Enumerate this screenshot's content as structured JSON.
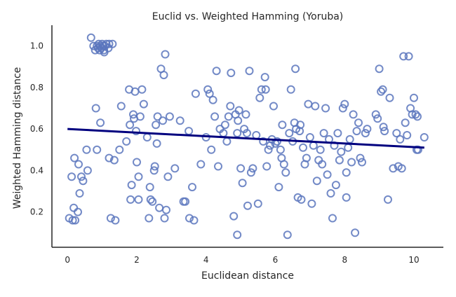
{
  "chart_data": {
    "type": "scatter",
    "title": "Euclid vs. Weighted Hamming (Yoruba)",
    "xlabel": "Euclidean distance",
    "ylabel": "Weighted Hamming distance",
    "xlim": [
      -0.45,
      10.85
    ],
    "ylim": [
      0.03,
      1.1
    ],
    "x_ticks": [
      "0",
      "2",
      "4",
      "6",
      "8",
      "10"
    ],
    "y_ticks": [
      "0.2",
      "0.4",
      "0.6",
      "0.8",
      "1.0"
    ],
    "grid": false,
    "colors": {
      "points": "#5b76bd",
      "trend": "#00007f",
      "axis": "#262626"
    },
    "series": [
      {
        "kind": "points",
        "points": [
          [
            0.68,
            1.04
          ],
          [
            0.75,
            1.0
          ],
          [
            0.8,
            0.98
          ],
          [
            0.85,
            1.0
          ],
          [
            0.88,
            0.99
          ],
          [
            0.9,
            1.01
          ],
          [
            0.93,
            0.98
          ],
          [
            0.95,
            1.0
          ],
          [
            0.98,
            0.99
          ],
          [
            1.0,
            1.01
          ],
          [
            1.03,
            1.0
          ],
          [
            1.05,
            0.98
          ],
          [
            1.08,
            1.0
          ],
          [
            1.12,
            1.01
          ],
          [
            1.18,
            0.99
          ],
          [
            1.2,
            1.01
          ],
          [
            1.3,
            1.01
          ],
          [
            1.06,
            0.97
          ],
          [
            0.05,
            0.17
          ],
          [
            0.12,
            0.37
          ],
          [
            0.15,
            0.16
          ],
          [
            0.18,
            0.22
          ],
          [
            0.2,
            0.46
          ],
          [
            0.22,
            0.16
          ],
          [
            0.3,
            0.2
          ],
          [
            0.32,
            0.43
          ],
          [
            0.35,
            0.29
          ],
          [
            0.4,
            0.37
          ],
          [
            0.45,
            0.35
          ],
          [
            0.55,
            0.5
          ],
          [
            0.58,
            0.4
          ],
          [
            0.82,
            0.7
          ],
          [
            0.85,
            0.5
          ],
          [
            0.95,
            0.63
          ],
          [
            1.2,
            0.46
          ],
          [
            1.25,
            0.17
          ],
          [
            1.35,
            0.45
          ],
          [
            1.38,
            0.16
          ],
          [
            1.5,
            0.5
          ],
          [
            1.55,
            0.71
          ],
          [
            1.7,
            0.54
          ],
          [
            1.78,
            0.79
          ],
          [
            1.8,
            0.62
          ],
          [
            1.82,
            0.26
          ],
          [
            1.85,
            0.33
          ],
          [
            1.9,
            0.67
          ],
          [
            1.92,
            0.65
          ],
          [
            1.95,
            0.78
          ],
          [
            1.98,
            0.59
          ],
          [
            2.0,
            0.44
          ],
          [
            2.05,
            0.37
          ],
          [
            2.1,
            0.66
          ],
          [
            2.15,
            0.79
          ],
          [
            2.2,
            0.72
          ],
          [
            2.3,
            0.56
          ],
          [
            2.35,
            0.17
          ],
          [
            2.38,
            0.32
          ],
          [
            2.4,
            0.26
          ],
          [
            2.45,
            0.25
          ],
          [
            2.5,
            0.4
          ],
          [
            2.52,
            0.42
          ],
          [
            2.55,
            0.62
          ],
          [
            2.58,
            0.53
          ],
          [
            2.6,
            0.66
          ],
          [
            2.65,
            0.22
          ],
          [
            2.7,
            0.89
          ],
          [
            2.75,
            0.64
          ],
          [
            2.78,
            0.86
          ],
          [
            2.8,
            0.17
          ],
          [
            2.82,
            0.96
          ],
          [
            2.85,
            0.21
          ],
          [
            2.9,
            0.37
          ],
          [
            2.95,
            0.66
          ],
          [
            3.1,
            0.41
          ],
          [
            3.25,
            0.64
          ],
          [
            3.35,
            0.25
          ],
          [
            3.4,
            0.25
          ],
          [
            3.5,
            0.59
          ],
          [
            3.52,
            0.17
          ],
          [
            3.6,
            0.32
          ],
          [
            3.65,
            0.16
          ],
          [
            3.7,
            0.77
          ],
          [
            3.85,
            0.43
          ],
          [
            4.0,
            0.56
          ],
          [
            4.05,
            0.79
          ],
          [
            4.1,
            0.77
          ],
          [
            4.15,
            0.5
          ],
          [
            4.2,
            0.74
          ],
          [
            4.25,
            0.66
          ],
          [
            4.3,
            0.88
          ],
          [
            4.35,
            0.42
          ],
          [
            4.4,
            0.6
          ],
          [
            4.5,
            0.58
          ],
          [
            4.55,
            0.62
          ],
          [
            4.6,
            0.54
          ],
          [
            4.65,
            0.66
          ],
          [
            4.7,
            0.71
          ],
          [
            4.72,
            0.87
          ],
          [
            4.8,
            0.18
          ],
          [
            4.85,
            0.67
          ],
          [
            4.9,
            0.09
          ],
          [
            4.92,
            0.64
          ],
          [
            4.95,
            0.69
          ],
          [
            5.0,
            0.41
          ],
          [
            5.05,
            0.34
          ],
          [
            5.1,
            0.6
          ],
          [
            5.15,
            0.67
          ],
          [
            5.18,
            0.58
          ],
          [
            5.2,
            0.23
          ],
          [
            5.25,
            0.88
          ],
          [
            5.3,
            0.39
          ],
          [
            5.35,
            0.41
          ],
          [
            5.45,
            0.57
          ],
          [
            5.5,
            0.24
          ],
          [
            5.55,
            0.75
          ],
          [
            5.6,
            0.79
          ],
          [
            5.65,
            0.54
          ],
          [
            5.7,
            0.85
          ],
          [
            5.72,
            0.79
          ],
          [
            5.75,
            0.42
          ],
          [
            5.8,
            0.5
          ],
          [
            5.85,
            0.52
          ],
          [
            5.9,
            0.55
          ],
          [
            5.95,
            0.71
          ],
          [
            6.0,
            0.53
          ],
          [
            6.05,
            0.54
          ],
          [
            6.1,
            0.32
          ],
          [
            6.15,
            0.5
          ],
          [
            6.18,
            0.46
          ],
          [
            6.2,
            0.62
          ],
          [
            6.25,
            0.43
          ],
          [
            6.3,
            0.39
          ],
          [
            6.35,
            0.09
          ],
          [
            6.4,
            0.58
          ],
          [
            6.45,
            0.79
          ],
          [
            6.5,
            0.54
          ],
          [
            6.55,
            0.63
          ],
          [
            6.58,
            0.89
          ],
          [
            6.6,
            0.6
          ],
          [
            6.65,
            0.27
          ],
          [
            6.7,
            0.59
          ],
          [
            6.72,
            0.62
          ],
          [
            6.75,
            0.26
          ],
          [
            6.8,
            0.51
          ],
          [
            6.85,
            0.43
          ],
          [
            6.9,
            0.46
          ],
          [
            6.95,
            0.72
          ],
          [
            7.0,
            0.56
          ],
          [
            7.05,
            0.24
          ],
          [
            7.1,
            0.52
          ],
          [
            7.15,
            0.71
          ],
          [
            7.2,
            0.35
          ],
          [
            7.25,
            0.45
          ],
          [
            7.3,
            0.5
          ],
          [
            7.35,
            0.43
          ],
          [
            7.4,
            0.58
          ],
          [
            7.45,
            0.7
          ],
          [
            7.5,
            0.38
          ],
          [
            7.55,
            0.55
          ],
          [
            7.6,
            0.29
          ],
          [
            7.65,
            0.17
          ],
          [
            7.7,
            0.52
          ],
          [
            7.75,
            0.33
          ],
          [
            7.8,
            0.58
          ],
          [
            7.85,
            0.45
          ],
          [
            7.9,
            0.49
          ],
          [
            7.95,
            0.7
          ],
          [
            8.0,
            0.72
          ],
          [
            8.05,
            0.39
          ],
          [
            8.1,
            0.51
          ],
          [
            8.15,
            0.55
          ],
          [
            8.2,
            0.44
          ],
          [
            8.25,
            0.67
          ],
          [
            8.3,
            0.1
          ],
          [
            8.35,
            0.59
          ],
          [
            8.4,
            0.63
          ],
          [
            8.45,
            0.46
          ],
          [
            8.5,
            0.44
          ],
          [
            8.6,
            0.58
          ],
          [
            8.65,
            0.6
          ],
          [
            8.9,
            0.67
          ],
          [
            8.95,
            0.65
          ],
          [
            9.0,
            0.89
          ],
          [
            9.05,
            0.78
          ],
          [
            9.1,
            0.79
          ],
          [
            9.12,
            0.61
          ],
          [
            9.15,
            0.59
          ],
          [
            9.25,
            0.26
          ],
          [
            9.3,
            0.75
          ],
          [
            9.4,
            0.41
          ],
          [
            9.5,
            0.58
          ],
          [
            9.55,
            0.42
          ],
          [
            9.6,
            0.55
          ],
          [
            9.65,
            0.41
          ],
          [
            9.7,
            0.95
          ],
          [
            9.75,
            0.63
          ],
          [
            9.8,
            0.57
          ],
          [
            9.85,
            0.95
          ],
          [
            9.9,
            0.7
          ],
          [
            9.95,
            0.67
          ],
          [
            10.0,
            0.75
          ],
          [
            10.05,
            0.67
          ],
          [
            10.08,
            0.5
          ],
          [
            10.1,
            0.66
          ],
          [
            10.12,
            0.5
          ],
          [
            10.3,
            0.56
          ],
          [
            8.05,
            0.27
          ],
          [
            2.05,
            0.26
          ],
          [
            4.9,
            0.58
          ]
        ]
      },
      {
        "kind": "trend",
        "points": [
          [
            0.0,
            0.6
          ],
          [
            10.3,
            0.51
          ]
        ]
      }
    ]
  }
}
